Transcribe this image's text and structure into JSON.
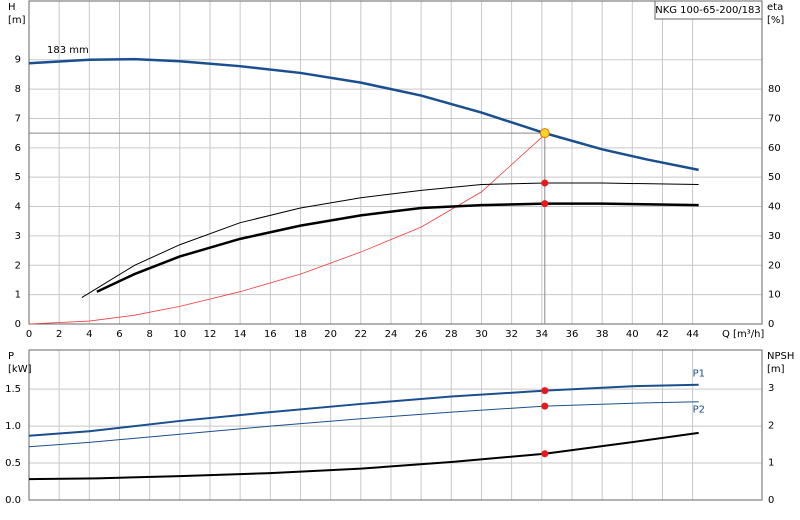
{
  "chart_data": [
    {
      "type": "line",
      "title": "NKG 100-65-200/183",
      "annotation": "183 mm",
      "ylabel": [
        "H",
        "[m]"
      ],
      "y2label": [
        "eta",
        "[%]"
      ],
      "xlabel": "Q [m³/h]",
      "xlim": [
        0,
        48.6
      ],
      "xticks": [
        0,
        2,
        4,
        6,
        8,
        10,
        12,
        14,
        16,
        18,
        20,
        22,
        24,
        26,
        28,
        30,
        32,
        34,
        36,
        38,
        40,
        42,
        44
      ],
      "ylim": [
        0,
        11
      ],
      "yticks": [
        0,
        1,
        2,
        3,
        4,
        5,
        6,
        7,
        8,
        9
      ],
      "y2lim": [
        0,
        110
      ],
      "y2ticks": [
        0,
        10,
        20,
        30,
        40,
        50,
        60,
        70,
        80
      ],
      "grid": true,
      "show_xtick_labels": true,
      "duty_point": {
        "x": 34.2,
        "y": 6.5,
        "color": "#f5d327",
        "line_color": "#888888"
      },
      "series": [
        {
          "color": "#1a4f8f",
          "width": 2.5,
          "x": [
            0,
            4,
            7,
            10,
            14,
            18,
            22,
            26,
            30,
            34.2,
            38,
            41,
            44.4
          ],
          "values": [
            8.88,
            9.0,
            9.02,
            8.95,
            8.78,
            8.55,
            8.22,
            7.78,
            7.2,
            6.5,
            5.95,
            5.6,
            5.25
          ]
        },
        {
          "color": "#f03c3c",
          "width": 0.8,
          "axis": "y2",
          "x": [
            0,
            4,
            7,
            10,
            14,
            18,
            22,
            26,
            30,
            34.2
          ],
          "values": [
            0,
            1,
            3,
            6,
            11,
            17,
            24.5,
            33,
            45,
            64.5
          ]
        },
        {
          "color": "#000000",
          "width": 1,
          "axis": "y2",
          "marker": "#e8191b",
          "x": [
            3.5,
            7,
            10,
            14,
            18,
            22,
            26,
            30,
            34.2,
            38,
            44.4
          ],
          "values": [
            9,
            20,
            27,
            34.5,
            39.5,
            43,
            45.5,
            47.5,
            48,
            48,
            47.5
          ]
        },
        {
          "color": "#000000",
          "width": 2.5,
          "axis": "y2",
          "marker": "#e8191b",
          "x": [
            4.5,
            7,
            10,
            14,
            18,
            22,
            26,
            30,
            34.2,
            38,
            44.4
          ],
          "values": [
            11,
            17,
            23,
            29,
            33.5,
            37,
            39.5,
            40.5,
            41,
            41,
            40.5
          ]
        }
      ]
    },
    {
      "type": "line",
      "ylabel": [
        "P",
        "[kW]"
      ],
      "y2label": [
        "NPSH",
        "[m]"
      ],
      "xlim": [
        0,
        48.6
      ],
      "xticks": [
        0,
        2,
        4,
        6,
        8,
        10,
        12,
        14,
        16,
        18,
        20,
        22,
        24,
        26,
        28,
        30,
        32,
        34,
        36,
        38,
        40,
        42,
        44
      ],
      "ylim": [
        0,
        2.03
      ],
      "yticks": [
        {
          "value": 0,
          "label": "0.0"
        },
        0.5,
        {
          "value": 1,
          "label": "1.0"
        },
        1.5
      ],
      "y2lim": [
        0,
        4.02
      ],
      "y2ticks": [
        0,
        1,
        2,
        3
      ],
      "grid": true,
      "show_xtick_labels": false,
      "series": [
        {
          "name": "P1",
          "color": "#1a4f8f",
          "width": 2,
          "marker": "#e8191b",
          "x": [
            0,
            4,
            10,
            16,
            22,
            28,
            34.2,
            40,
            44.4
          ],
          "values": [
            0.87,
            0.93,
            1.07,
            1.19,
            1.3,
            1.4,
            1.48,
            1.54,
            1.56
          ]
        },
        {
          "name": "P2",
          "color": "#1a4f8f",
          "width": 1,
          "marker": "#e8191b",
          "x": [
            0,
            4,
            10,
            16,
            22,
            28,
            34.2,
            40,
            44.4
          ],
          "values": [
            0.72,
            0.78,
            0.89,
            1.0,
            1.1,
            1.19,
            1.27,
            1.31,
            1.33
          ]
        },
        {
          "color": "#000000",
          "width": 2,
          "axis": "y2",
          "marker": "#e8191b",
          "x": [
            0,
            4.5,
            10,
            16,
            22,
            28,
            34.2,
            40,
            44.4
          ],
          "values": [
            0.56,
            0.58,
            0.64,
            0.72,
            0.84,
            1.02,
            1.24,
            1.55,
            1.8
          ]
        }
      ]
    }
  ]
}
